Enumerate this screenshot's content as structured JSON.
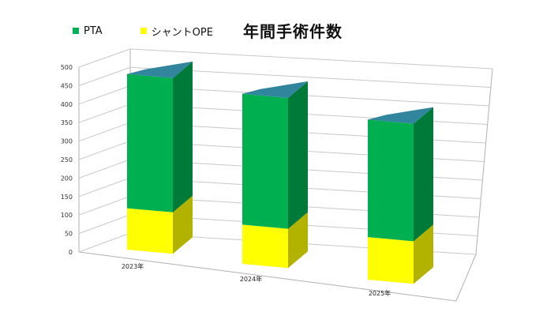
{
  "chart_data": {
    "type": "bar",
    "stacked": true,
    "three_d": true,
    "title": "年間手術件数",
    "categories": [
      "2023年",
      "2024年",
      "2025年"
    ],
    "series": [
      {
        "name": "シャントOPE",
        "values": [
          112,
          106,
          115
        ],
        "color": "#ffff00",
        "side_color": "#b2b200"
      },
      {
        "name": "PTA",
        "values": [
          363,
          354,
          318
        ],
        "color": "#00b050",
        "side_color": "#007a38"
      }
    ],
    "top_color": "#31859c",
    "yticks": [
      "0",
      "50",
      "100",
      "150",
      "200",
      "250",
      "300",
      "350",
      "400",
      "450",
      "500"
    ],
    "ylim": [
      0,
      500
    ],
    "grid": true,
    "legend_position": "top-left",
    "legend_order": [
      "PTA",
      "シャントOPE"
    ]
  }
}
